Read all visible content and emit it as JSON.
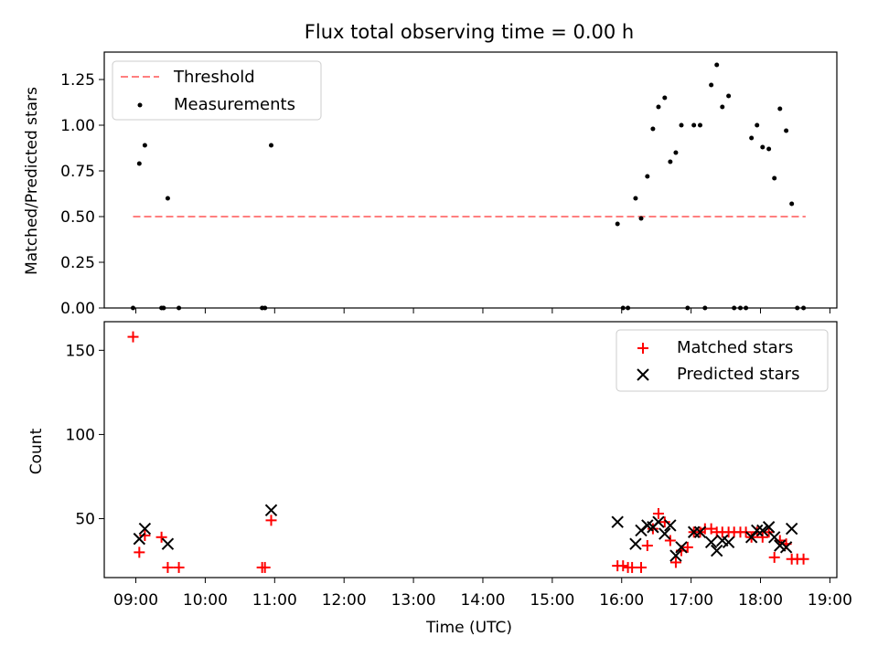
{
  "chart_data": [
    {
      "type": "scatter",
      "title": "Flux total observing time = 0.00 h",
      "xlabel": "",
      "ylabel": "Matched/Predicted stars",
      "xlim": [
        8.545,
        19.1
      ],
      "ylim": [
        0,
        1.4
      ],
      "yticks": [
        0,
        0.25,
        0.5,
        0.75,
        1.0,
        1.25
      ],
      "ytick_labels": [
        "0.00",
        "0.25",
        "0.50",
        "0.75",
        "1.00",
        "1.25"
      ],
      "legend": {
        "position": "top-left",
        "entries": [
          "Threshold",
          "Measurements"
        ]
      },
      "series": [
        {
          "name": "Threshold",
          "kind": "line",
          "color": "#ff7f7f",
          "x": [
            8.96,
            18.65
          ],
          "y": [
            0.5,
            0.5
          ]
        },
        {
          "name": "Measurements",
          "kind": "points",
          "color": "#000000",
          "x": [
            8.96,
            9.05,
            9.13,
            9.37,
            9.4,
            9.46,
            9.62,
            10.82,
            10.86,
            10.95,
            15.94,
            16.02,
            16.09,
            16.2,
            16.28,
            16.37,
            16.45,
            16.53,
            16.62,
            16.7,
            16.78,
            16.86,
            16.95,
            17.04,
            17.13,
            17.2,
            17.29,
            17.37,
            17.45,
            17.54,
            17.62,
            17.71,
            17.79,
            17.87,
            17.95,
            18.03,
            18.12,
            18.2,
            18.28,
            18.37,
            18.45,
            18.53,
            18.62
          ],
          "y": [
            0,
            0.79,
            0.89,
            0,
            0,
            0.6,
            0,
            0,
            0,
            0.89,
            0.46,
            0,
            0,
            0.6,
            0.49,
            0.72,
            0.98,
            1.1,
            1.15,
            0.8,
            0.85,
            1.0,
            0,
            1.0,
            1.0,
            0,
            1.22,
            1.33,
            1.1,
            1.16,
            0,
            0,
            0,
            0.93,
            1.0,
            0.88,
            0.87,
            0.71,
            1.09,
            0.97,
            0.57,
            0,
            0
          ]
        }
      ]
    },
    {
      "type": "scatter",
      "title": "",
      "xlabel": "Time (UTC)",
      "ylabel": "Count",
      "xlim": [
        8.545,
        19.1
      ],
      "ylim": [
        15,
        167
      ],
      "yticks": [
        50,
        100,
        150
      ],
      "ytick_labels": [
        "50",
        "100",
        "150"
      ],
      "xticks": [
        9,
        10,
        11,
        12,
        13,
        14,
        15,
        16,
        17,
        18,
        19
      ],
      "xtick_labels": [
        "09:00",
        "10:00",
        "11:00",
        "12:00",
        "13:00",
        "14:00",
        "15:00",
        "16:00",
        "17:00",
        "18:00",
        "19:00"
      ],
      "legend": {
        "position": "top-right",
        "entries": [
          "Matched stars",
          "Predicted stars"
        ]
      },
      "series": [
        {
          "name": "Matched stars",
          "marker": "+",
          "color": "#ff0000",
          "x": [
            8.96,
            9.05,
            9.13,
            9.37,
            9.46,
            9.62,
            10.82,
            10.86,
            10.95,
            15.94,
            16.02,
            16.09,
            16.15,
            16.28,
            16.37,
            16.45,
            16.53,
            16.62,
            16.7,
            16.78,
            16.86,
            16.95,
            17.04,
            17.13,
            17.2,
            17.29,
            17.37,
            17.45,
            17.54,
            17.62,
            17.71,
            17.79,
            17.87,
            17.95,
            18.03,
            18.12,
            18.2,
            18.28,
            18.37,
            18.45,
            18.53,
            18.62
          ],
          "y": [
            158,
            30,
            40,
            39,
            21,
            21,
            21,
            21,
            49,
            22,
            22,
            21,
            21,
            21,
            34,
            44,
            53,
            48,
            37,
            24,
            31,
            33,
            42,
            42,
            44,
            44,
            42,
            42,
            42,
            42,
            42,
            42,
            39,
            42,
            39,
            42,
            27,
            37,
            35,
            26,
            26,
            26
          ]
        },
        {
          "name": "Predicted stars",
          "marker": "x",
          "color": "#000000",
          "x": [
            9.05,
            9.13,
            9.46,
            10.95,
            15.94,
            16.2,
            16.28,
            16.37,
            16.45,
            16.53,
            16.62,
            16.7,
            16.78,
            16.86,
            17.04,
            17.13,
            17.29,
            17.37,
            17.45,
            17.54,
            17.87,
            17.95,
            18.03,
            18.12,
            18.2,
            18.28,
            18.37,
            18.45
          ],
          "y": [
            38,
            44,
            35,
            55,
            48,
            35,
            43,
            46,
            45,
            48,
            41,
            46,
            28,
            33,
            42,
            42,
            36,
            31,
            37,
            36,
            39,
            43,
            43,
            45,
            39,
            34,
            33,
            44
          ]
        }
      ]
    }
  ]
}
